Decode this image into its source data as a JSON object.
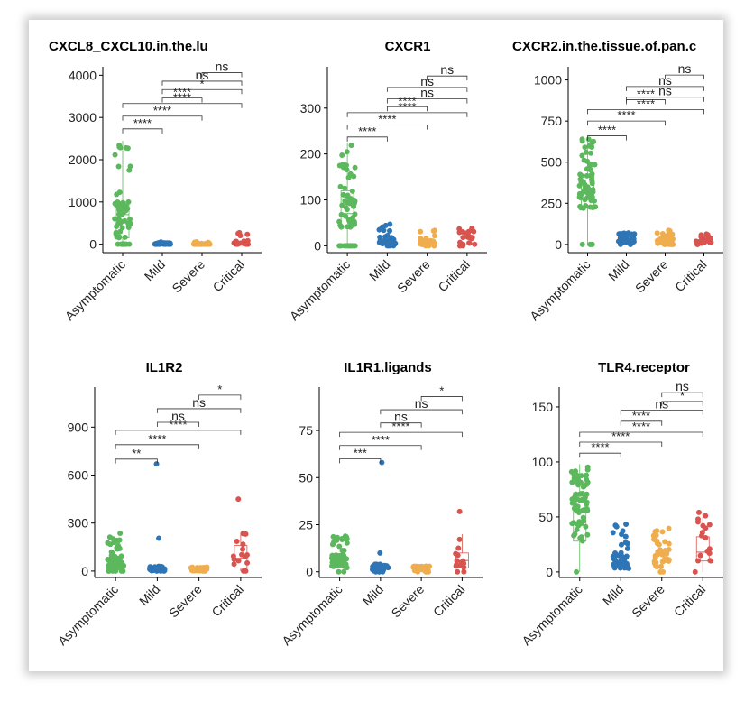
{
  "chart_data": [
    {
      "type": "scatter",
      "title": "CXCL8_CXCL10.in.the.lu",
      "categories": [
        "Asymptomatic",
        "Mild",
        "Severe",
        "Critical"
      ],
      "colors": [
        "#5cb85c",
        "#2e75b6",
        "#f0ad4e",
        "#d9534f"
      ],
      "yticks": [
        0,
        1000,
        2000,
        3000,
        4000
      ],
      "ylim": [
        -200,
        4200
      ],
      "groups": [
        {
          "n": 65,
          "min": 0,
          "max": 2450,
          "q1": 150,
          "median": 700,
          "q3": 1000,
          "zero_frac": 0.3,
          "box": true
        },
        {
          "n": 40,
          "min": 0,
          "max": 60,
          "q1": 0,
          "median": 10,
          "q3": 20,
          "zero_frac": 0.4,
          "box": false
        },
        {
          "n": 40,
          "min": 0,
          "max": 60,
          "q1": 0,
          "median": 10,
          "q3": 20,
          "zero_frac": 0.4,
          "box": false
        },
        {
          "n": 20,
          "min": 0,
          "max": 280,
          "q1": 0,
          "median": 30,
          "q3": 100,
          "zero_frac": 0.3,
          "box": false
        }
      ],
      "comparisons": [
        {
          "from": 1,
          "to": 2,
          "label": "****",
          "y": 2730
        },
        {
          "from": 1,
          "to": 3,
          "label": "****",
          "y": 3030
        },
        {
          "from": 1,
          "to": 4,
          "label": "****",
          "y": 3330
        },
        {
          "from": 2,
          "to": 3,
          "label": "****",
          "y": 3460
        },
        {
          "from": 2,
          "to": 4,
          "label": "*",
          "y": 3660
        },
        {
          "from": 2,
          "to": 4,
          "label": "ns",
          "y": 3860
        },
        {
          "from": 3,
          "to": 4,
          "label": "ns",
          "y": 4060
        }
      ]
    },
    {
      "type": "scatter",
      "title": "CXCR1",
      "categories": [
        "Asymptomatic",
        "Mild",
        "Severe",
        "Critical"
      ],
      "colors": [
        "#5cb85c",
        "#2e75b6",
        "#f0ad4e",
        "#d9534f"
      ],
      "yticks": [
        0,
        100,
        200,
        300
      ],
      "ylim": [
        -15,
        390
      ],
      "groups": [
        {
          "n": 65,
          "min": 0,
          "max": 225,
          "q1": 40,
          "median": 70,
          "q3": 120,
          "zero_frac": 0.2,
          "box": true
        },
        {
          "n": 40,
          "min": 0,
          "max": 50,
          "q1": 2,
          "median": 6,
          "q3": 12,
          "zero_frac": 0.1,
          "box": false
        },
        {
          "n": 40,
          "min": 0,
          "max": 48,
          "q1": 2,
          "median": 6,
          "q3": 12,
          "zero_frac": 0.1,
          "box": false
        },
        {
          "n": 25,
          "min": 0,
          "max": 40,
          "q1": 3,
          "median": 8,
          "q3": 20,
          "zero_frac": 0.1,
          "box": false
        }
      ],
      "comparisons": [
        {
          "from": 1,
          "to": 2,
          "label": "****",
          "y": 237
        },
        {
          "from": 1,
          "to": 3,
          "label": "****",
          "y": 263
        },
        {
          "from": 1,
          "to": 4,
          "label": "****",
          "y": 290
        },
        {
          "from": 2,
          "to": 3,
          "label": "****",
          "y": 303
        },
        {
          "from": 2,
          "to": 4,
          "label": "ns",
          "y": 320
        },
        {
          "from": 2,
          "to": 4,
          "label": "ns",
          "y": 345
        },
        {
          "from": 3,
          "to": 4,
          "label": "ns",
          "y": 370
        }
      ]
    },
    {
      "type": "scatter",
      "title": "CXCR2.in.the.tissue.of.pan.c",
      "categories": [
        "Asymptomatic",
        "Mild",
        "Severe",
        "Critical"
      ],
      "colors": [
        "#5cb85c",
        "#2e75b6",
        "#f0ad4e",
        "#d9534f"
      ],
      "yticks": [
        0,
        250,
        500,
        750,
        1000
      ],
      "ylim": [
        -50,
        1080
      ],
      "groups": [
        {
          "n": 65,
          "min": 0,
          "max": 640,
          "q1": 220,
          "median": 310,
          "q3": 420,
          "zero_frac": 0.1,
          "box": true
        },
        {
          "n": 40,
          "min": 0,
          "max": 70,
          "q1": 10,
          "median": 20,
          "q3": 35,
          "zero_frac": 0.1,
          "box": false
        },
        {
          "n": 35,
          "min": 0,
          "max": 105,
          "q1": 5,
          "median": 20,
          "q3": 35,
          "zero_frac": 0.1,
          "box": false
        },
        {
          "n": 25,
          "min": 0,
          "max": 75,
          "q1": 5,
          "median": 20,
          "q3": 40,
          "zero_frac": 0.1,
          "box": false
        }
      ],
      "comparisons": [
        {
          "from": 1,
          "to": 2,
          "label": "****",
          "y": 660
        },
        {
          "from": 1,
          "to": 3,
          "label": "****",
          "y": 750
        },
        {
          "from": 1,
          "to": 4,
          "label": "****",
          "y": 820
        },
        {
          "from": 2,
          "to": 3,
          "label": "****",
          "y": 880
        },
        {
          "from": 2,
          "to": 4,
          "label": "ns",
          "y": 895
        },
        {
          "from": 2,
          "to": 4,
          "label": "ns",
          "y": 960
        },
        {
          "from": 3,
          "to": 4,
          "label": "ns",
          "y": 1030
        }
      ]
    },
    {
      "type": "scatter",
      "title": "IL1R2",
      "categories": [
        "Asymptomatic",
        "Mild",
        "Severe",
        "Critical"
      ],
      "colors": [
        "#5cb85c",
        "#2e75b6",
        "#f0ad4e",
        "#d9534f"
      ],
      "yticks": [
        0,
        300,
        600,
        900
      ],
      "ylim": [
        -40,
        1150
      ],
      "groups": [
        {
          "n": 65,
          "min": 0,
          "max": 240,
          "q1": 10,
          "median": 40,
          "q3": 80,
          "zero_frac": 0.1,
          "box": false
        },
        {
          "n": 40,
          "min": 0,
          "max": 30,
          "q1": 2,
          "median": 8,
          "q3": 15,
          "zero_frac": 0.1,
          "box": false,
          "outliers": [
            670,
            205
          ]
        },
        {
          "n": 40,
          "min": 0,
          "max": 25,
          "q1": 2,
          "median": 6,
          "q3": 12,
          "zero_frac": 0.1,
          "box": false
        },
        {
          "n": 15,
          "min": 0,
          "max": 240,
          "q1": 20,
          "median": 80,
          "q3": 160,
          "zero_frac": 0.1,
          "box": true,
          "outliers": [
            450
          ]
        }
      ],
      "comparisons": [
        {
          "from": 1,
          "to": 2,
          "label": "**",
          "y": 700
        },
        {
          "from": 1,
          "to": 3,
          "label": "****",
          "y": 790
        },
        {
          "from": 1,
          "to": 4,
          "label": "****",
          "y": 880
        },
        {
          "from": 2,
          "to": 3,
          "label": "ns",
          "y": 930
        },
        {
          "from": 2,
          "to": 4,
          "label": "ns",
          "y": 1015
        },
        {
          "from": 3,
          "to": 4,
          "label": "*",
          "y": 1100
        }
      ]
    },
    {
      "type": "scatter",
      "title": "IL1R1.ligands",
      "categories": [
        "Asymptomatic",
        "Mild",
        "Severe",
        "Critical"
      ],
      "colors": [
        "#5cb85c",
        "#2e75b6",
        "#f0ad4e",
        "#d9534f"
      ],
      "yticks": [
        0,
        25,
        50,
        75
      ],
      "ylim": [
        -3,
        98
      ],
      "groups": [
        {
          "n": 65,
          "min": 0,
          "max": 19,
          "q1": 2,
          "median": 5,
          "q3": 9,
          "zero_frac": 0.05,
          "box": false
        },
        {
          "n": 40,
          "min": 0,
          "max": 4,
          "q1": 0.5,
          "median": 1.5,
          "q3": 3,
          "zero_frac": 0.1,
          "box": false,
          "outliers": [
            58,
            10
          ]
        },
        {
          "n": 40,
          "min": 0,
          "max": 3,
          "q1": 0.5,
          "median": 1.5,
          "q3": 2.5,
          "zero_frac": 0.1,
          "box": false
        },
        {
          "n": 15,
          "min": 0,
          "max": 20,
          "q1": 2,
          "median": 6,
          "q3": 10,
          "zero_frac": 0.1,
          "box": true,
          "outliers": [
            32
          ]
        }
      ],
      "comparisons": [
        {
          "from": 1,
          "to": 2,
          "label": "***",
          "y": 60
        },
        {
          "from": 1,
          "to": 3,
          "label": "****",
          "y": 67
        },
        {
          "from": 1,
          "to": 4,
          "label": "****",
          "y": 74
        },
        {
          "from": 2,
          "to": 3,
          "label": "ns",
          "y": 79
        },
        {
          "from": 2,
          "to": 4,
          "label": "ns",
          "y": 86
        },
        {
          "from": 3,
          "to": 4,
          "label": "*",
          "y": 93
        }
      ]
    },
    {
      "type": "scatter",
      "title": "TLR4.receptor",
      "categories": [
        "Asymptomatic",
        "Mild",
        "Severe",
        "Critical"
      ],
      "colors": [
        "#5cb85c",
        "#2e75b6",
        "#f0ad4e",
        "#d9534f"
      ],
      "yticks": [
        0,
        50,
        100,
        150
      ],
      "ylim": [
        -5,
        168
      ],
      "groups": [
        {
          "n": 70,
          "min": 0,
          "max": 98,
          "q1": 28,
          "median": 55,
          "q3": 72,
          "zero_frac": 0.03,
          "box": true
        },
        {
          "n": 50,
          "min": 0,
          "max": 45,
          "q1": 3,
          "median": 9,
          "q3": 18,
          "zero_frac": 0.05,
          "box": false
        },
        {
          "n": 40,
          "min": 0,
          "max": 40,
          "q1": 4,
          "median": 12,
          "q3": 22,
          "zero_frac": 0.05,
          "box": false
        },
        {
          "n": 18,
          "min": 0,
          "max": 55,
          "q1": 10,
          "median": 18,
          "q3": 32,
          "zero_frac": 0.05,
          "box": true
        }
      ],
      "comparisons": [
        {
          "from": 1,
          "to": 2,
          "label": "****",
          "y": 108
        },
        {
          "from": 1,
          "to": 3,
          "label": "****",
          "y": 118
        },
        {
          "from": 1,
          "to": 4,
          "label": "****",
          "y": 127
        },
        {
          "from": 2,
          "to": 3,
          "label": "****",
          "y": 137
        },
        {
          "from": 2,
          "to": 4,
          "label": "ns",
          "y": 147
        },
        {
          "from": 3,
          "to": 4,
          "label": "*",
          "y": 155
        },
        {
          "from": 3,
          "to": 4,
          "label": "ns",
          "y": 163
        }
      ]
    }
  ]
}
